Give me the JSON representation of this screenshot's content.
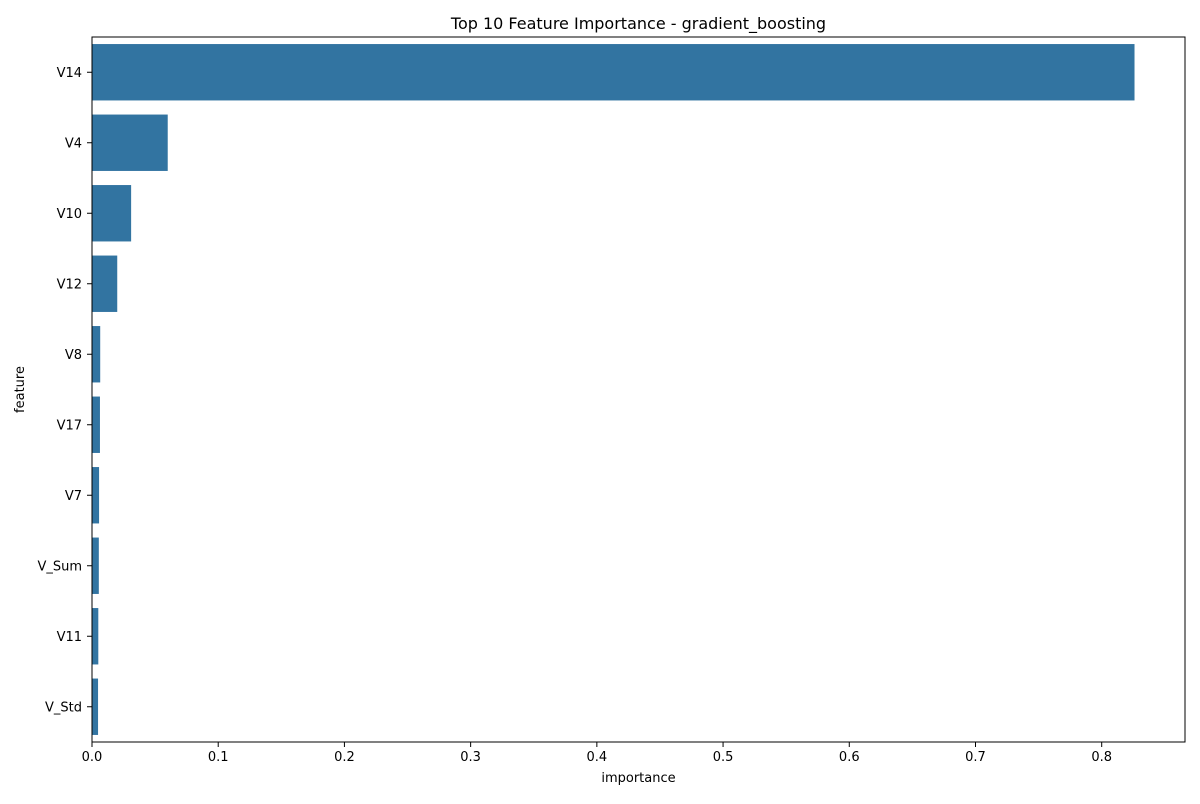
{
  "chart_data": {
    "type": "bar",
    "orientation": "horizontal",
    "title": "Top 10 Feature Importance - gradient_boosting",
    "xlabel": "importance",
    "ylabel": "feature",
    "xlim": [
      0,
      0.866
    ],
    "xticks": [
      0.0,
      0.1,
      0.2,
      0.3,
      0.4,
      0.5,
      0.6,
      0.7,
      0.8
    ],
    "xtick_labels": [
      "0.0",
      "0.1",
      "0.2",
      "0.3",
      "0.4",
      "0.5",
      "0.6",
      "0.7",
      "0.8"
    ],
    "categories": [
      "V14",
      "V4",
      "V10",
      "V12",
      "V8",
      "V17",
      "V7",
      "V_Sum",
      "V11",
      "V_Std"
    ],
    "values": [
      0.826,
      0.06,
      0.031,
      0.02,
      0.0065,
      0.0063,
      0.0056,
      0.0054,
      0.005,
      0.0048
    ],
    "bar_color": "#3274a1",
    "grid": false,
    "legend": "none"
  }
}
